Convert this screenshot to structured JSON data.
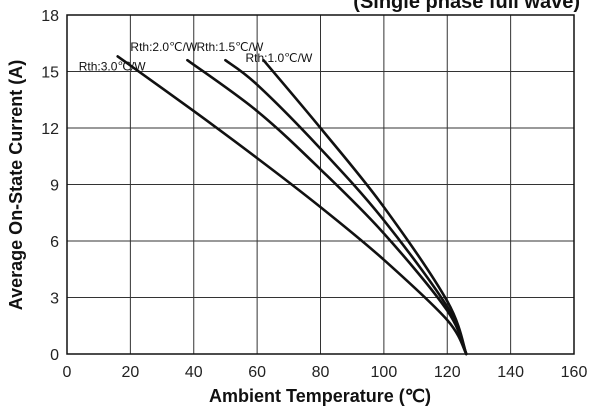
{
  "chart_data": {
    "type": "line",
    "title": "(Single phase full wave)",
    "xlabel": "Ambient Temperature (℃)",
    "ylabel": "Average On-State Current (A)",
    "xlim": [
      0,
      160
    ],
    "ylim": [
      0,
      18
    ],
    "xticks": [
      0,
      20,
      40,
      60,
      80,
      100,
      120,
      140,
      160
    ],
    "yticks": [
      0,
      3,
      6,
      9,
      12,
      15,
      18
    ],
    "grid": true,
    "series": [
      {
        "name": "Rth:3.0℃/W",
        "x": [
          16,
          40,
          60,
          80,
          100,
          120,
          126
        ],
        "y": [
          15.8,
          12.9,
          10.4,
          7.8,
          5.0,
          1.8,
          0
        ]
      },
      {
        "name": "Rth:2.0℃/W",
        "x": [
          38,
          60,
          80,
          100,
          120,
          126
        ],
        "y": [
          15.6,
          12.9,
          9.8,
          6.4,
          2.3,
          0
        ]
      },
      {
        "name": "Rth:1.5℃/W",
        "x": [
          50,
          60,
          80,
          100,
          120,
          126
        ],
        "y": [
          15.6,
          14.3,
          10.9,
          7.1,
          2.5,
          0
        ]
      },
      {
        "name": "Rth:1.0℃/W",
        "x": [
          62,
          80,
          100,
          120,
          126
        ],
        "y": [
          15.6,
          12.0,
          7.8,
          2.8,
          0
        ]
      }
    ]
  }
}
